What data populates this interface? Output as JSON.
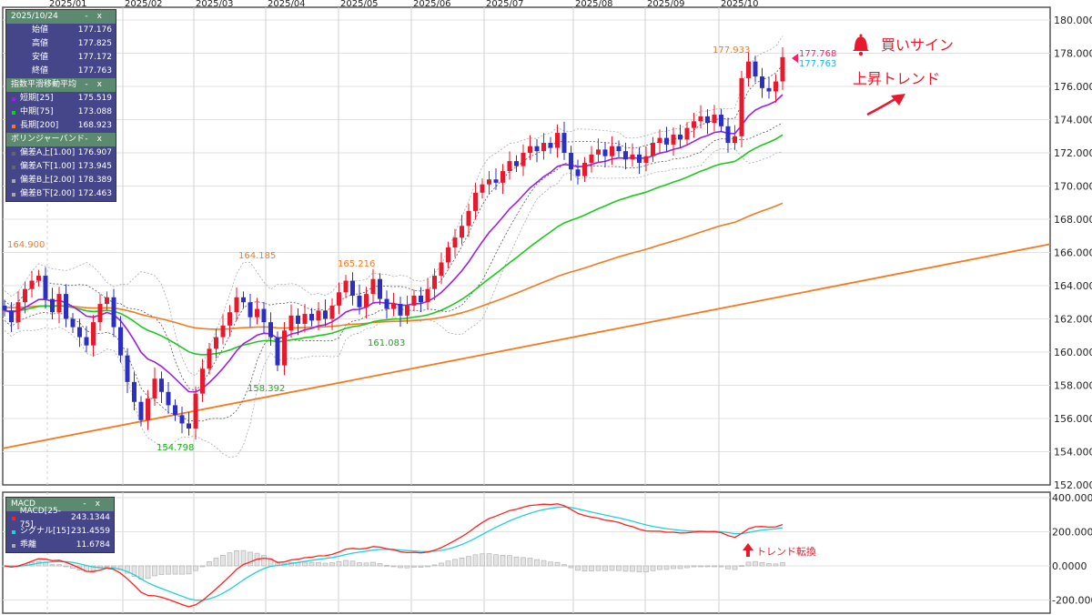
{
  "chart_data": {
    "type": "candlestick",
    "x_months": [
      "2025/01",
      "2025/02",
      "2025/03",
      "2025/04",
      "2025/05",
      "2025/06",
      "2025/07",
      "2025/08",
      "2025/09",
      "2025/10"
    ],
    "y_ticks": [
      "180.000",
      "178.000",
      "176.000",
      "174.000",
      "172.000",
      "170.000",
      "168.000",
      "166.000",
      "164.000",
      "162.000",
      "160.000",
      "158.000",
      "156.000",
      "154.000",
      "152.000"
    ],
    "ylim": [
      152,
      180.8
    ],
    "closes": [
      162.5,
      161.8,
      163.0,
      163.8,
      164.3,
      164.6,
      163.2,
      162.4,
      163.5,
      162.0,
      161.5,
      160.9,
      160.4,
      161.8,
      162.9,
      163.3,
      161.5,
      159.8,
      158.2,
      157.0,
      155.9,
      157.2,
      158.4,
      157.6,
      156.8,
      156.2,
      155.7,
      155.4,
      157.5,
      159.0,
      160.2,
      160.9,
      161.6,
      162.4,
      163.3,
      163.0,
      162.1,
      162.6,
      161.8,
      160.9,
      159.2,
      161.3,
      162.2,
      161.7,
      162.3,
      161.9,
      162.5,
      162.0,
      162.8,
      163.6,
      164.3,
      163.4,
      162.7,
      163.5,
      164.4,
      163.2,
      162.6,
      162.9,
      162.2,
      162.8,
      163.4,
      163.0,
      163.8,
      164.6,
      165.4,
      166.3,
      166.9,
      167.6,
      168.5,
      169.6,
      170.1,
      170.4,
      170.2,
      170.9,
      171.5,
      171.2,
      172.0,
      172.4,
      172.1,
      172.6,
      172.3,
      173.2,
      172.0,
      171.0,
      170.6,
      171.4,
      171.9,
      172.2,
      171.8,
      172.4,
      172.1,
      171.6,
      171.9,
      171.4,
      171.8,
      172.6,
      172.9,
      172.5,
      173.1,
      172.8,
      173.5,
      173.9,
      174.2,
      173.8,
      174.3,
      173.6,
      172.6,
      173.0,
      176.5,
      177.5,
      176.6,
      175.9,
      175.7,
      176.3,
      177.763
    ],
    "first_open": 162.8,
    "up_color": "#e8192c",
    "down_color": "#2b2fc4",
    "ema_colors": {
      "short": "#9b1fe8",
      "mid": "#1ec81e",
      "long": "#f47a20"
    },
    "trendline": {
      "from": 154.2,
      "to": 166.5,
      "color": "#f47a20"
    },
    "annotations": {
      "high1": "164.900",
      "high2": "164.185",
      "high3": "165.216",
      "high4": "177.933",
      "low1": "154.798",
      "low2": "158.392",
      "low3": "161.083",
      "bid": "177.768",
      "ask": "177.763"
    },
    "macd": {
      "y_ticks": [
        "400.0000",
        "200.0000",
        "0.0000",
        "-200.0000"
      ],
      "ylim": [
        -280,
        430
      ],
      "macd_color": "#ff2020",
      "signal_color": "#22d0d8",
      "hist_color": "#aaaaaa"
    }
  },
  "signals": {
    "buy": "買いサイン",
    "trend": "上昇トレンド",
    "reversal": "トレンド転換"
  },
  "ohlc_panel": {
    "title": "2025/10/24",
    "min": "-",
    "close": "x",
    "rows": [
      {
        "label": "始値",
        "value": "177.176"
      },
      {
        "label": "高値",
        "value": "177.825"
      },
      {
        "label": "安値",
        "value": "177.172"
      },
      {
        "label": "終値",
        "value": "177.763"
      }
    ]
  },
  "ema_panel": {
    "title": "指数平滑移動平均",
    "min": "-",
    "close": "x",
    "rows": [
      {
        "label": "短期[25]",
        "value": "175.519",
        "color": "#9b1fe8"
      },
      {
        "label": "中期[75]",
        "value": "173.088",
        "color": "#1ec81e"
      },
      {
        "label": "長期[200]",
        "value": "168.923",
        "color": "#f47a20"
      }
    ]
  },
  "bb_panel": {
    "title": "ボリンジャーバンド",
    "min": "-",
    "close": "x",
    "rows": [
      {
        "label": "偏差A上[1.00]",
        "value": "176.907",
        "color": "#666666"
      },
      {
        "label": "偏差A下[1.00]",
        "value": "173.945",
        "color": "#666666"
      },
      {
        "label": "偏差B上[2.00]",
        "value": "178.389",
        "color": "#aaaaaa"
      },
      {
        "label": "偏差B下[2.00]",
        "value": "172.463",
        "color": "#aaaaaa"
      }
    ]
  },
  "macd_panel": {
    "title": "MACD",
    "min": "-",
    "close": "x",
    "rows": [
      {
        "label": "MACD[25-75]",
        "value": "243.1344",
        "color": "#ff2020"
      },
      {
        "label": "シグナル[15]",
        "value": "231.4559",
        "color": "#22d0d8"
      },
      {
        "label": "乖離",
        "value": "11.6784",
        "color": "#aaaaaa"
      }
    ]
  }
}
